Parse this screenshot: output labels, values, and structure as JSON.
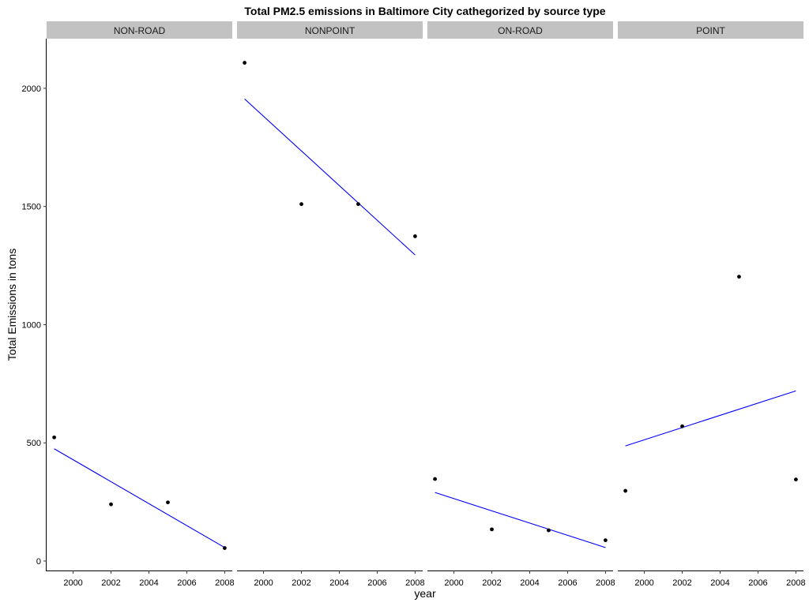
{
  "chart_data": {
    "type": "scatter",
    "title": "Total PM2.5 emissions in Baltimore City cathegorized by source type",
    "xlabel": "year",
    "ylabel": "Total Emissions in tons",
    "xlim": [
      1998.6,
      2008.4
    ],
    "ylim": [
      -40,
      2210
    ],
    "x_ticks": [
      2000,
      2002,
      2004,
      2006,
      2008
    ],
    "y_ticks": [
      0,
      500,
      1000,
      1500,
      2000
    ],
    "grid": false,
    "point_color": "#000000",
    "trend_color": "#0000ff",
    "strip_color": "#c2c2c2",
    "panels": [
      {
        "name": "NON-ROAD",
        "x": [
          1999,
          2002,
          2005,
          2008
        ],
        "y": [
          523,
          240,
          248,
          55
        ],
        "trend": {
          "x": [
            1999,
            2008
          ],
          "y": [
            475,
            57
          ]
        }
      },
      {
        "name": "NONPOINT",
        "x": [
          1999,
          2002,
          2005,
          2008
        ],
        "y": [
          2108,
          1510,
          1510,
          1374
        ],
        "trend": {
          "x": [
            1999,
            2008
          ],
          "y": [
            1955,
            1295
          ]
        }
      },
      {
        "name": "ON-ROAD",
        "x": [
          1999,
          2002,
          2005,
          2008
        ],
        "y": [
          347,
          134,
          130,
          88
        ],
        "trend": {
          "x": [
            1999,
            2008
          ],
          "y": [
            290,
            57
          ]
        }
      },
      {
        "name": "POINT",
        "x": [
          1999,
          2002,
          2005,
          2008
        ],
        "y": [
          297,
          570,
          1203,
          345
        ],
        "trend": {
          "x": [
            1999,
            2008
          ],
          "y": [
            487,
            720
          ]
        }
      }
    ]
  }
}
